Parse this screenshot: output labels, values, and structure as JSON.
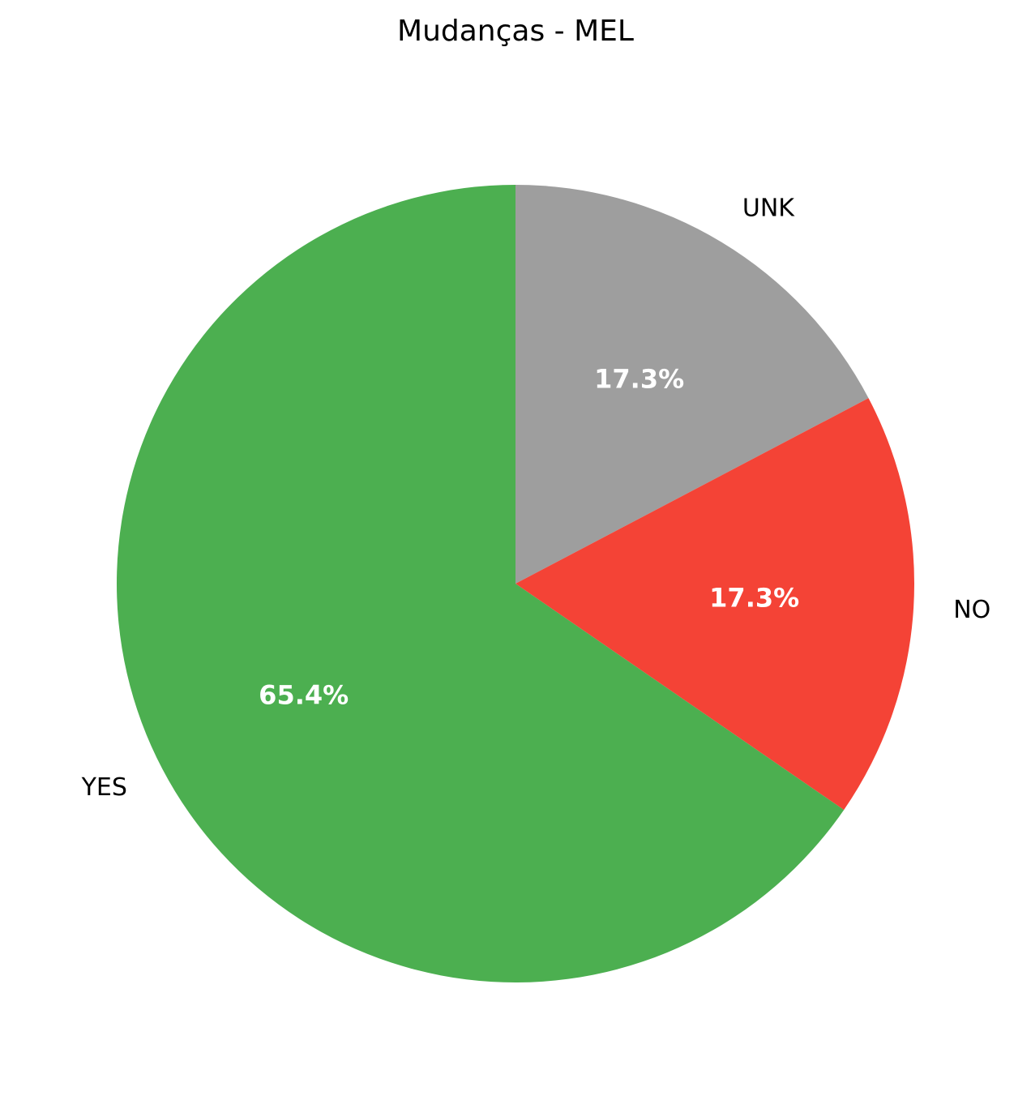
{
  "chart_data": {
    "type": "pie",
    "title": "Mudanças - MEL",
    "categories": [
      "UNK",
      "NO",
      "YES"
    ],
    "values": [
      17.3,
      17.3,
      65.4
    ],
    "value_labels": [
      "17.3%",
      "17.3%",
      "65.4%"
    ],
    "colors": [
      "#9e9e9e",
      "#f44336",
      "#4caf50"
    ],
    "start_angle_deg": 90,
    "direction": "clockwise",
    "legend": "none"
  }
}
